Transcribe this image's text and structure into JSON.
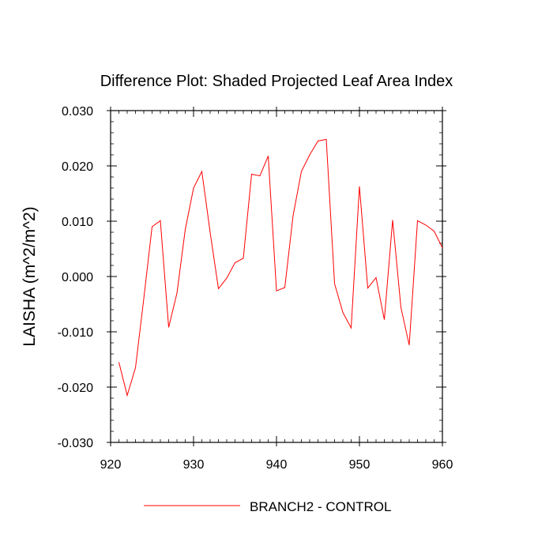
{
  "chart_data": {
    "type": "line",
    "title": "Difference Plot: Shaded Projected Leaf Area Index",
    "xlabel": "",
    "ylabel": "LAISHA  (m^2/m^2)",
    "xlim": [
      920,
      960
    ],
    "ylim": [
      -0.03,
      0.03
    ],
    "x_ticks": [
      920,
      930,
      940,
      950,
      960
    ],
    "x_tick_labels": [
      "920",
      "930",
      "940",
      "950",
      "960"
    ],
    "y_ticks": [
      -0.03,
      -0.02,
      -0.01,
      0.0,
      0.01,
      0.02,
      0.03
    ],
    "y_tick_labels": [
      "-0.030",
      "-0.020",
      "-0.010",
      "0.000",
      "0.010",
      "0.020",
      "0.030"
    ],
    "grid": false,
    "legend_position": "bottom",
    "series": [
      {
        "name": "BRANCH2 - CONTROL",
        "color": "#ff0000",
        "x": [
          921,
          922,
          923,
          924,
          925,
          926,
          927,
          928,
          929,
          930,
          931,
          932,
          933,
          934,
          935,
          936,
          937,
          938,
          939,
          940,
          941,
          942,
          943,
          944,
          945,
          946,
          947,
          948,
          949,
          950,
          951,
          952,
          953,
          954,
          955,
          956,
          957,
          958,
          959,
          960
        ],
        "values": [
          -0.0155,
          -0.0215,
          -0.0165,
          -0.004,
          0.009,
          0.0101,
          -0.0092,
          -0.003,
          0.0085,
          0.016,
          0.019,
          0.008,
          -0.0022,
          -0.0003,
          0.0025,
          0.0033,
          0.0185,
          0.0182,
          0.0218,
          -0.0026,
          -0.002,
          0.011,
          0.019,
          0.022,
          0.0245,
          0.0248,
          -0.0013,
          -0.0065,
          -0.0093,
          0.0163,
          -0.0021,
          -0.0002,
          -0.0078,
          0.0102,
          -0.0056,
          -0.0124,
          0.0101,
          0.0093,
          0.0082,
          0.0052
        ]
      }
    ]
  }
}
